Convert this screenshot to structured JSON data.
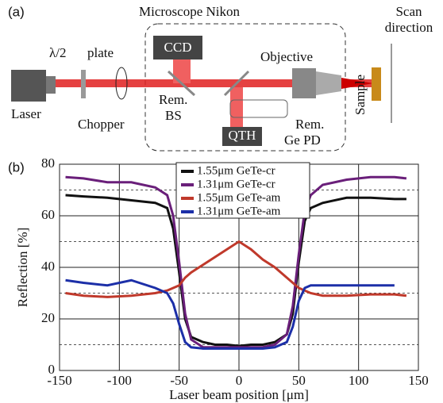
{
  "diagram": {
    "panel": "(a)",
    "microscope": "Microscope Nikon",
    "laser": "Laser",
    "halfwave": "λ/2",
    "plate": "plate",
    "chopper": "Chopper",
    "ccd": "CCD",
    "bs": [
      "Rem.",
      "BS"
    ],
    "objective": "Objective",
    "qth": "QTH",
    "pd": [
      "Rem.",
      "Ge PD"
    ],
    "sample": "Sample",
    "scan": [
      "Scan",
      "direction"
    ]
  },
  "chart_data": {
    "type": "line",
    "panel": "(b)",
    "xlabel": "Laser beam position [μm]",
    "ylabel": "Reflection [%]",
    "x": [
      -145,
      -130,
      -110,
      -90,
      -70,
      -60,
      -55,
      -50,
      -45,
      -40,
      -30,
      -20,
      -10,
      0,
      10,
      20,
      30,
      40,
      45,
      50,
      55,
      60,
      70,
      90,
      110,
      130,
      140
    ],
    "series": [
      {
        "name": "1.55μm GeTe-cr",
        "color": "#111111",
        "values": [
          68,
          67.5,
          67,
          66,
          65,
          63,
          55,
          38,
          20,
          13,
          11,
          10,
          10,
          9.5,
          10,
          10,
          11,
          14,
          22,
          42,
          58,
          63,
          65,
          67,
          67,
          66.5,
          66.5
        ]
      },
      {
        "name": "1.31μm GeTe-cr",
        "color": "#6a1f7a",
        "values": [
          75,
          74.5,
          73,
          73,
          71,
          68,
          60,
          42,
          22,
          12,
          9,
          9,
          9,
          9,
          9,
          9,
          10,
          14,
          25,
          45,
          62,
          68,
          72,
          74,
          75,
          75,
          74.5
        ]
      },
      {
        "name": "1.55μm GeTe-am",
        "color": "#c0392b",
        "values": [
          30,
          29,
          28.5,
          29,
          30,
          31,
          32,
          33,
          36,
          38,
          41,
          44,
          47,
          50,
          47,
          43,
          40,
          36,
          34,
          32,
          31,
          30,
          29,
          29,
          29.5,
          29.5,
          29
        ]
      },
      {
        "name": "1.31μm GeTe-am",
        "color": "#1c2fa8",
        "values": [
          35,
          34,
          33,
          35,
          32,
          30,
          26,
          18,
          11,
          9,
          8.5,
          8.5,
          8.5,
          8.5,
          8.5,
          8.5,
          9,
          11,
          17,
          27,
          32,
          33,
          33,
          33,
          33,
          33,
          null
        ]
      }
    ],
    "xlim": [
      -150,
      150
    ],
    "ylim": [
      0,
      80
    ],
    "xticks": [
      -150,
      -100,
      -50,
      0,
      50,
      100,
      150
    ],
    "yticks": [
      0,
      20,
      40,
      60,
      80
    ],
    "minor_yticks": [
      10,
      30,
      50,
      70
    ],
    "grid": true
  }
}
